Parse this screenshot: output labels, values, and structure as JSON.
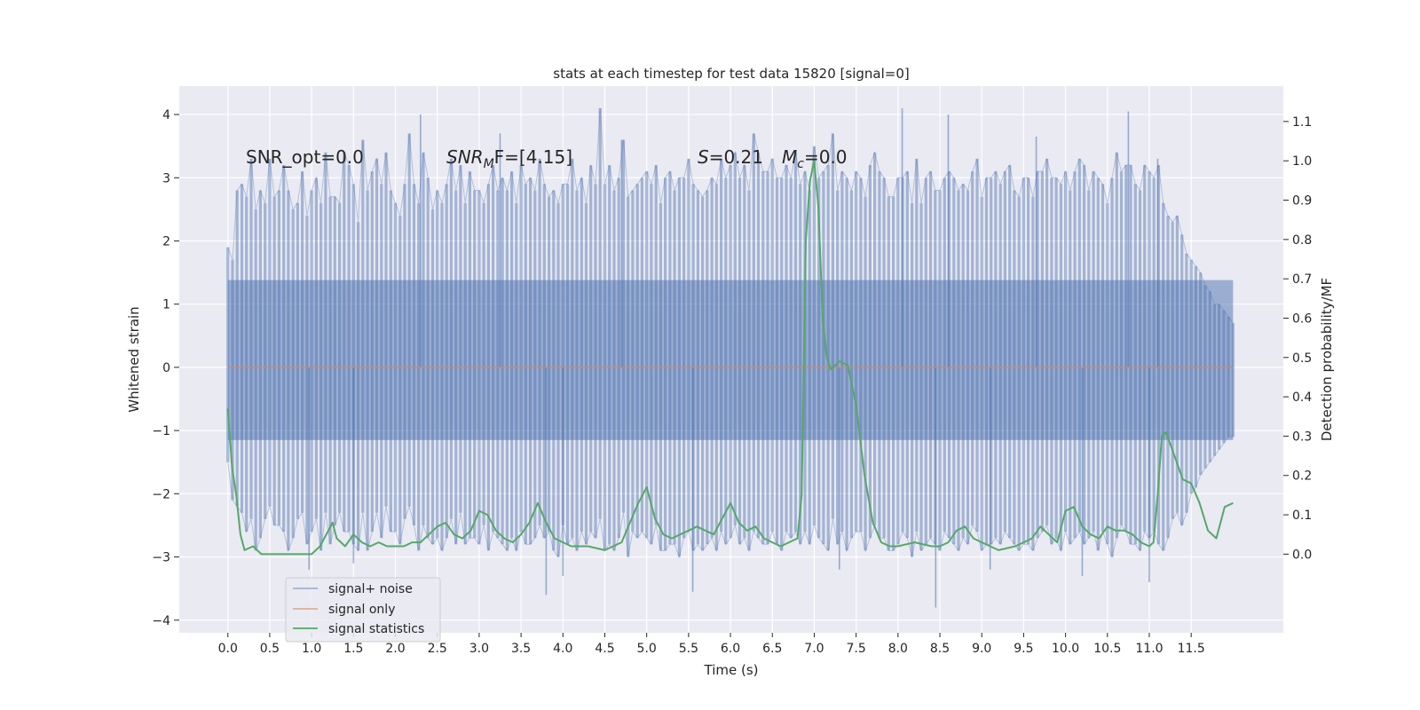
{
  "chart_data": {
    "type": "line",
    "title": "stats at each timestep for test data 15820 [signal=0]",
    "xlabel": "Time (s)",
    "ylabel_left": "Whitened strain",
    "ylabel_right": "Detection probability/MF",
    "xlim": [
      -0.58,
      12.6
    ],
    "ylim_left": [
      -4.2,
      4.45
    ],
    "ylim_right": [
      -0.2,
      1.19
    ],
    "x_ticks": [
      "0.0",
      "0.5",
      "1.0",
      "1.5",
      "2.0",
      "2.5",
      "3.0",
      "3.5",
      "4.0",
      "4.5",
      "5.0",
      "5.5",
      "6.0",
      "6.5",
      "7.0",
      "7.5",
      "8.0",
      "8.5",
      "9.0",
      "9.5",
      "10.0",
      "10.5",
      "11.0",
      "11.5"
    ],
    "y_ticks_left": [
      "4",
      "3",
      "2",
      "1",
      "0",
      "−1",
      "−2",
      "−3",
      "−4"
    ],
    "y_ticks_right": [
      "1.1",
      "1.0",
      "0.9",
      "0.8",
      "0.7",
      "0.6",
      "0.5",
      "0.4",
      "0.3",
      "0.2",
      "0.1",
      "0.0"
    ],
    "grid": true,
    "legend_position": "lower-left",
    "colors": {
      "noise": "#4c72b0",
      "signal": "#dd8452",
      "stats": "#55a868",
      "background": "#eaeaf2",
      "grid": "#ffffff"
    },
    "annotations": {
      "snr_opt": "SNR_opt=0.0",
      "snr_mf_main": "SNR",
      "snr_mf_sub": "M",
      "snr_mf_rest": "F=[4.15]",
      "s_main": "S",
      "s_rest": "=0.21",
      "mc_main": "M",
      "mc_sub": "c",
      "mc_rest": "=0.0"
    },
    "series": [
      {
        "name": "signal+ noise",
        "x_range": [
          0.0,
          12.0
        ],
        "envelope_upper": [
          1.9,
          1.7,
          2.8,
          2.9,
          2.7,
          3.3,
          2.5,
          2.8,
          2.6,
          3.3,
          2.7,
          2.8,
          3.2,
          2.8,
          2.5,
          2.6,
          3.1,
          2.4,
          2.8,
          3.0,
          2.6,
          3.4,
          2.7,
          2.7,
          2.6,
          3.4,
          3.2,
          2.9,
          2.3,
          3.6,
          2.8,
          3.1,
          3.3,
          2.9,
          3.4,
          2.8,
          2.6,
          2.4,
          2.9,
          3.7,
          2.9,
          2.6,
          3.4,
          3.0,
          2.5,
          2.8,
          2.6,
          2.9,
          3.3,
          2.8,
          3.2,
          2.6,
          3.1,
          2.8,
          2.8,
          2.6,
          2.9,
          3.2,
          2.8,
          3.0,
          2.8,
          3.1,
          2.6,
          3.2,
          2.9,
          3.0,
          2.8,
          3.3,
          2.9,
          2.7,
          2.8,
          2.6,
          2.9,
          2.9,
          3.3,
          2.8,
          3.0,
          2.6,
          3.2,
          2.9,
          4.1,
          2.9,
          3.2,
          2.8,
          3.0,
          3.6,
          2.7,
          2.8,
          2.9,
          3.0,
          3.1,
          2.9,
          3.2,
          2.6,
          3.0,
          3.1,
          2.8,
          3.0,
          3.0,
          3.3,
          2.9,
          2.8,
          2.7,
          2.8,
          3.0,
          2.9,
          3.3,
          3.0,
          3.2,
          3.4,
          3.0,
          3.2,
          2.8,
          3.7,
          3.4,
          3.1,
          3.1,
          3.3,
          3.0,
          3.0,
          3.2,
          3.0,
          3.4,
          2.9,
          3.1,
          2.8,
          3.5,
          3.0,
          3.1,
          3.2,
          3.7,
          2.8,
          3.1,
          3.0,
          2.8,
          3.1,
          3.0,
          2.7,
          3.2,
          3.4,
          3.1,
          3.0,
          2.7,
          2.7,
          3.0,
          3.0,
          3.1,
          2.6,
          3.3,
          2.6,
          3.0,
          3.1,
          2.8,
          2.8,
          3.0,
          3.1,
          3.0,
          2.8,
          2.9,
          2.8,
          3.1,
          3.3,
          2.7,
          3.0,
          3.0,
          3.1,
          2.9,
          3.1,
          3.2,
          2.8,
          2.7,
          3.0,
          3.0,
          2.7,
          3.1,
          3.1,
          3.3,
          3.0,
          3.0,
          2.9,
          3.1,
          2.8,
          3.1,
          3.3,
          3.2,
          2.8,
          3.1,
          3.0,
          2.9,
          2.6,
          3.0,
          3.4,
          3.1,
          3.2,
          3.2,
          2.9,
          2.8,
          3.2,
          3.1,
          3.0,
          3.2,
          2.6,
          2.4,
          2.3,
          2.4,
          2.1,
          1.8,
          1.7,
          1.6,
          1.5,
          1.3,
          1.2,
          1.0,
          1.0,
          0.9,
          0.8,
          0.7
        ],
        "envelope_lower": [
          -1.5,
          -2.1,
          -2.2,
          -2.3,
          -2.6,
          -2.4,
          -2.9,
          -2.7,
          -2.4,
          -2.2,
          -2.5,
          -2.5,
          -2.6,
          -2.9,
          -2.7,
          -2.4,
          -2.3,
          -2.8,
          -2.6,
          -2.4,
          -2.9,
          -2.3,
          -2.8,
          -2.5,
          -2.3,
          -2.6,
          -2.6,
          -2.8,
          -2.9,
          -2.3,
          -2.9,
          -2.6,
          -2.3,
          -2.7,
          -2.2,
          -2.6,
          -2.6,
          -2.8,
          -2.4,
          -2.2,
          -2.5,
          -2.9,
          -2.5,
          -2.7,
          -2.8,
          -2.7,
          -2.9,
          -2.7,
          -2.4,
          -2.8,
          -2.3,
          -2.8,
          -2.7,
          -2.7,
          -2.8,
          -2.5,
          -2.9,
          -2.6,
          -2.7,
          -2.8,
          -2.9,
          -2.7,
          -2.9,
          -2.6,
          -2.8,
          -2.8,
          -2.7,
          -2.5,
          -2.7,
          -2.6,
          -2.9,
          -3.0,
          -2.5,
          -2.8,
          -2.7,
          -2.9,
          -2.6,
          -2.8,
          -2.6,
          -2.7,
          -2.4,
          -2.9,
          -2.8,
          -2.9,
          -2.7,
          -2.3,
          -3.0,
          -2.6,
          -2.7,
          -2.6,
          -2.7,
          -2.8,
          -2.5,
          -2.9,
          -2.9,
          -2.8,
          -2.8,
          -3.0,
          -2.7,
          -2.6,
          -2.9,
          -2.8,
          -2.9,
          -2.8,
          -2.7,
          -2.9,
          -2.6,
          -2.8,
          -2.7,
          -2.5,
          -2.8,
          -2.7,
          -2.9,
          -2.6,
          -2.7,
          -2.8,
          -2.8,
          -2.6,
          -2.8,
          -2.9,
          -2.6,
          -2.7,
          -2.6,
          -2.8,
          -2.6,
          -2.8,
          -2.5,
          -2.7,
          -2.8,
          -2.9,
          -2.4,
          -2.8,
          -2.6,
          -2.9,
          -2.7,
          -2.6,
          -2.6,
          -2.9,
          -2.7,
          -2.5,
          -2.7,
          -2.7,
          -2.9,
          -2.9,
          -2.8,
          -2.6,
          -2.7,
          -3.0,
          -2.6,
          -2.9,
          -2.8,
          -2.7,
          -2.8,
          -2.9,
          -2.6,
          -2.7,
          -2.8,
          -2.9,
          -2.7,
          -2.8,
          -2.5,
          -2.6,
          -2.9,
          -2.8,
          -2.8,
          -2.7,
          -2.8,
          -2.6,
          -2.7,
          -2.8,
          -2.9,
          -2.8,
          -2.8,
          -2.9,
          -2.7,
          -2.6,
          -2.5,
          -2.8,
          -2.7,
          -2.9,
          -2.6,
          -2.8,
          -2.7,
          -2.6,
          -2.8,
          -2.7,
          -2.6,
          -2.9,
          -2.6,
          -2.8,
          -3.0,
          -2.7,
          -2.5,
          -2.6,
          -2.8,
          -2.8,
          -2.9,
          -2.6,
          -2.7,
          -2.6,
          -2.8,
          -2.9,
          -2.7,
          -2.4,
          -2.3,
          -2.5,
          -2.3,
          -2.0,
          -1.9,
          -1.7,
          -1.6,
          -1.5,
          -1.4,
          -1.3,
          -1.2,
          -1.1,
          -1.1,
          -1.0
        ],
        "band_upper": 1.38,
        "band_lower": -1.15,
        "spikes": [
          {
            "x": 0.97,
            "y": -3.2
          },
          {
            "x": 1.5,
            "y": -3.1
          },
          {
            "x": 2.3,
            "y": 4.0
          },
          {
            "x": 3.25,
            "y": 3.7
          },
          {
            "x": 3.8,
            "y": -3.6
          },
          {
            "x": 4.0,
            "y": -3.3
          },
          {
            "x": 4.7,
            "y": 3.6
          },
          {
            "x": 5.55,
            "y": -3.55
          },
          {
            "x": 7.3,
            "y": -3.2
          },
          {
            "x": 8.05,
            "y": 4.1
          },
          {
            "x": 8.45,
            "y": -3.8
          },
          {
            "x": 8.6,
            "y": 4.0
          },
          {
            "x": 9.1,
            "y": -3.2
          },
          {
            "x": 9.65,
            "y": 3.65
          },
          {
            "x": 10.2,
            "y": -3.3
          },
          {
            "x": 10.75,
            "y": 4.05
          },
          {
            "x": 11.0,
            "y": -3.4
          },
          {
            "x": 11.1,
            "y": 3.3
          }
        ]
      },
      {
        "name": "signal only",
        "x": [
          0.0,
          12.0
        ],
        "y": [
          0.0,
          0.0
        ]
      },
      {
        "name": "signal statistics",
        "x": [
          0.0,
          0.05,
          0.1,
          0.15,
          0.2,
          0.3,
          0.4,
          0.5,
          0.6,
          0.8,
          1.0,
          1.1,
          1.2,
          1.25,
          1.3,
          1.4,
          1.5,
          1.6,
          1.7,
          1.8,
          1.9,
          2.0,
          2.1,
          2.2,
          2.3,
          2.4,
          2.5,
          2.6,
          2.7,
          2.8,
          2.9,
          3.0,
          3.1,
          3.2,
          3.3,
          3.4,
          3.5,
          3.6,
          3.7,
          3.8,
          3.9,
          4.0,
          4.1,
          4.2,
          4.3,
          4.5,
          4.6,
          4.7,
          4.8,
          4.9,
          5.0,
          5.1,
          5.2,
          5.3,
          5.4,
          5.5,
          5.6,
          5.7,
          5.8,
          5.9,
          6.0,
          6.1,
          6.2,
          6.3,
          6.4,
          6.5,
          6.6,
          6.7,
          6.8,
          6.85,
          6.9,
          6.95,
          7.0,
          7.05,
          7.1,
          7.15,
          7.2,
          7.3,
          7.4,
          7.5,
          7.6,
          7.7,
          7.8,
          7.9,
          8.0,
          8.2,
          8.4,
          8.5,
          8.6,
          8.7,
          8.8,
          8.9,
          9.0,
          9.2,
          9.4,
          9.5,
          9.6,
          9.7,
          9.8,
          9.9,
          10.0,
          10.1,
          10.2,
          10.3,
          10.4,
          10.5,
          10.6,
          10.7,
          10.8,
          10.9,
          11.0,
          11.05,
          11.1,
          11.15,
          11.2,
          11.3,
          11.4,
          11.5,
          11.6,
          11.7,
          11.8,
          11.9,
          12.0
        ],
        "y": [
          0.37,
          0.22,
          0.15,
          0.05,
          0.01,
          0.02,
          0.0,
          0.0,
          0.0,
          0.0,
          0.0,
          0.02,
          0.06,
          0.08,
          0.04,
          0.02,
          0.05,
          0.03,
          0.02,
          0.03,
          0.02,
          0.02,
          0.02,
          0.03,
          0.03,
          0.05,
          0.07,
          0.08,
          0.05,
          0.04,
          0.06,
          0.11,
          0.1,
          0.06,
          0.04,
          0.03,
          0.05,
          0.08,
          0.13,
          0.08,
          0.04,
          0.03,
          0.02,
          0.02,
          0.02,
          0.01,
          0.02,
          0.03,
          0.08,
          0.13,
          0.17,
          0.09,
          0.05,
          0.04,
          0.05,
          0.06,
          0.07,
          0.06,
          0.05,
          0.09,
          0.13,
          0.08,
          0.06,
          0.07,
          0.04,
          0.03,
          0.02,
          0.03,
          0.04,
          0.15,
          0.8,
          0.95,
          1.0,
          0.88,
          0.6,
          0.5,
          0.47,
          0.49,
          0.48,
          0.38,
          0.2,
          0.08,
          0.03,
          0.02,
          0.02,
          0.03,
          0.02,
          0.02,
          0.03,
          0.06,
          0.07,
          0.04,
          0.03,
          0.01,
          0.02,
          0.03,
          0.04,
          0.07,
          0.05,
          0.03,
          0.11,
          0.12,
          0.07,
          0.05,
          0.04,
          0.07,
          0.06,
          0.06,
          0.05,
          0.03,
          0.02,
          0.03,
          0.15,
          0.3,
          0.31,
          0.25,
          0.19,
          0.18,
          0.13,
          0.06,
          0.04,
          0.12,
          0.13
        ]
      }
    ]
  }
}
